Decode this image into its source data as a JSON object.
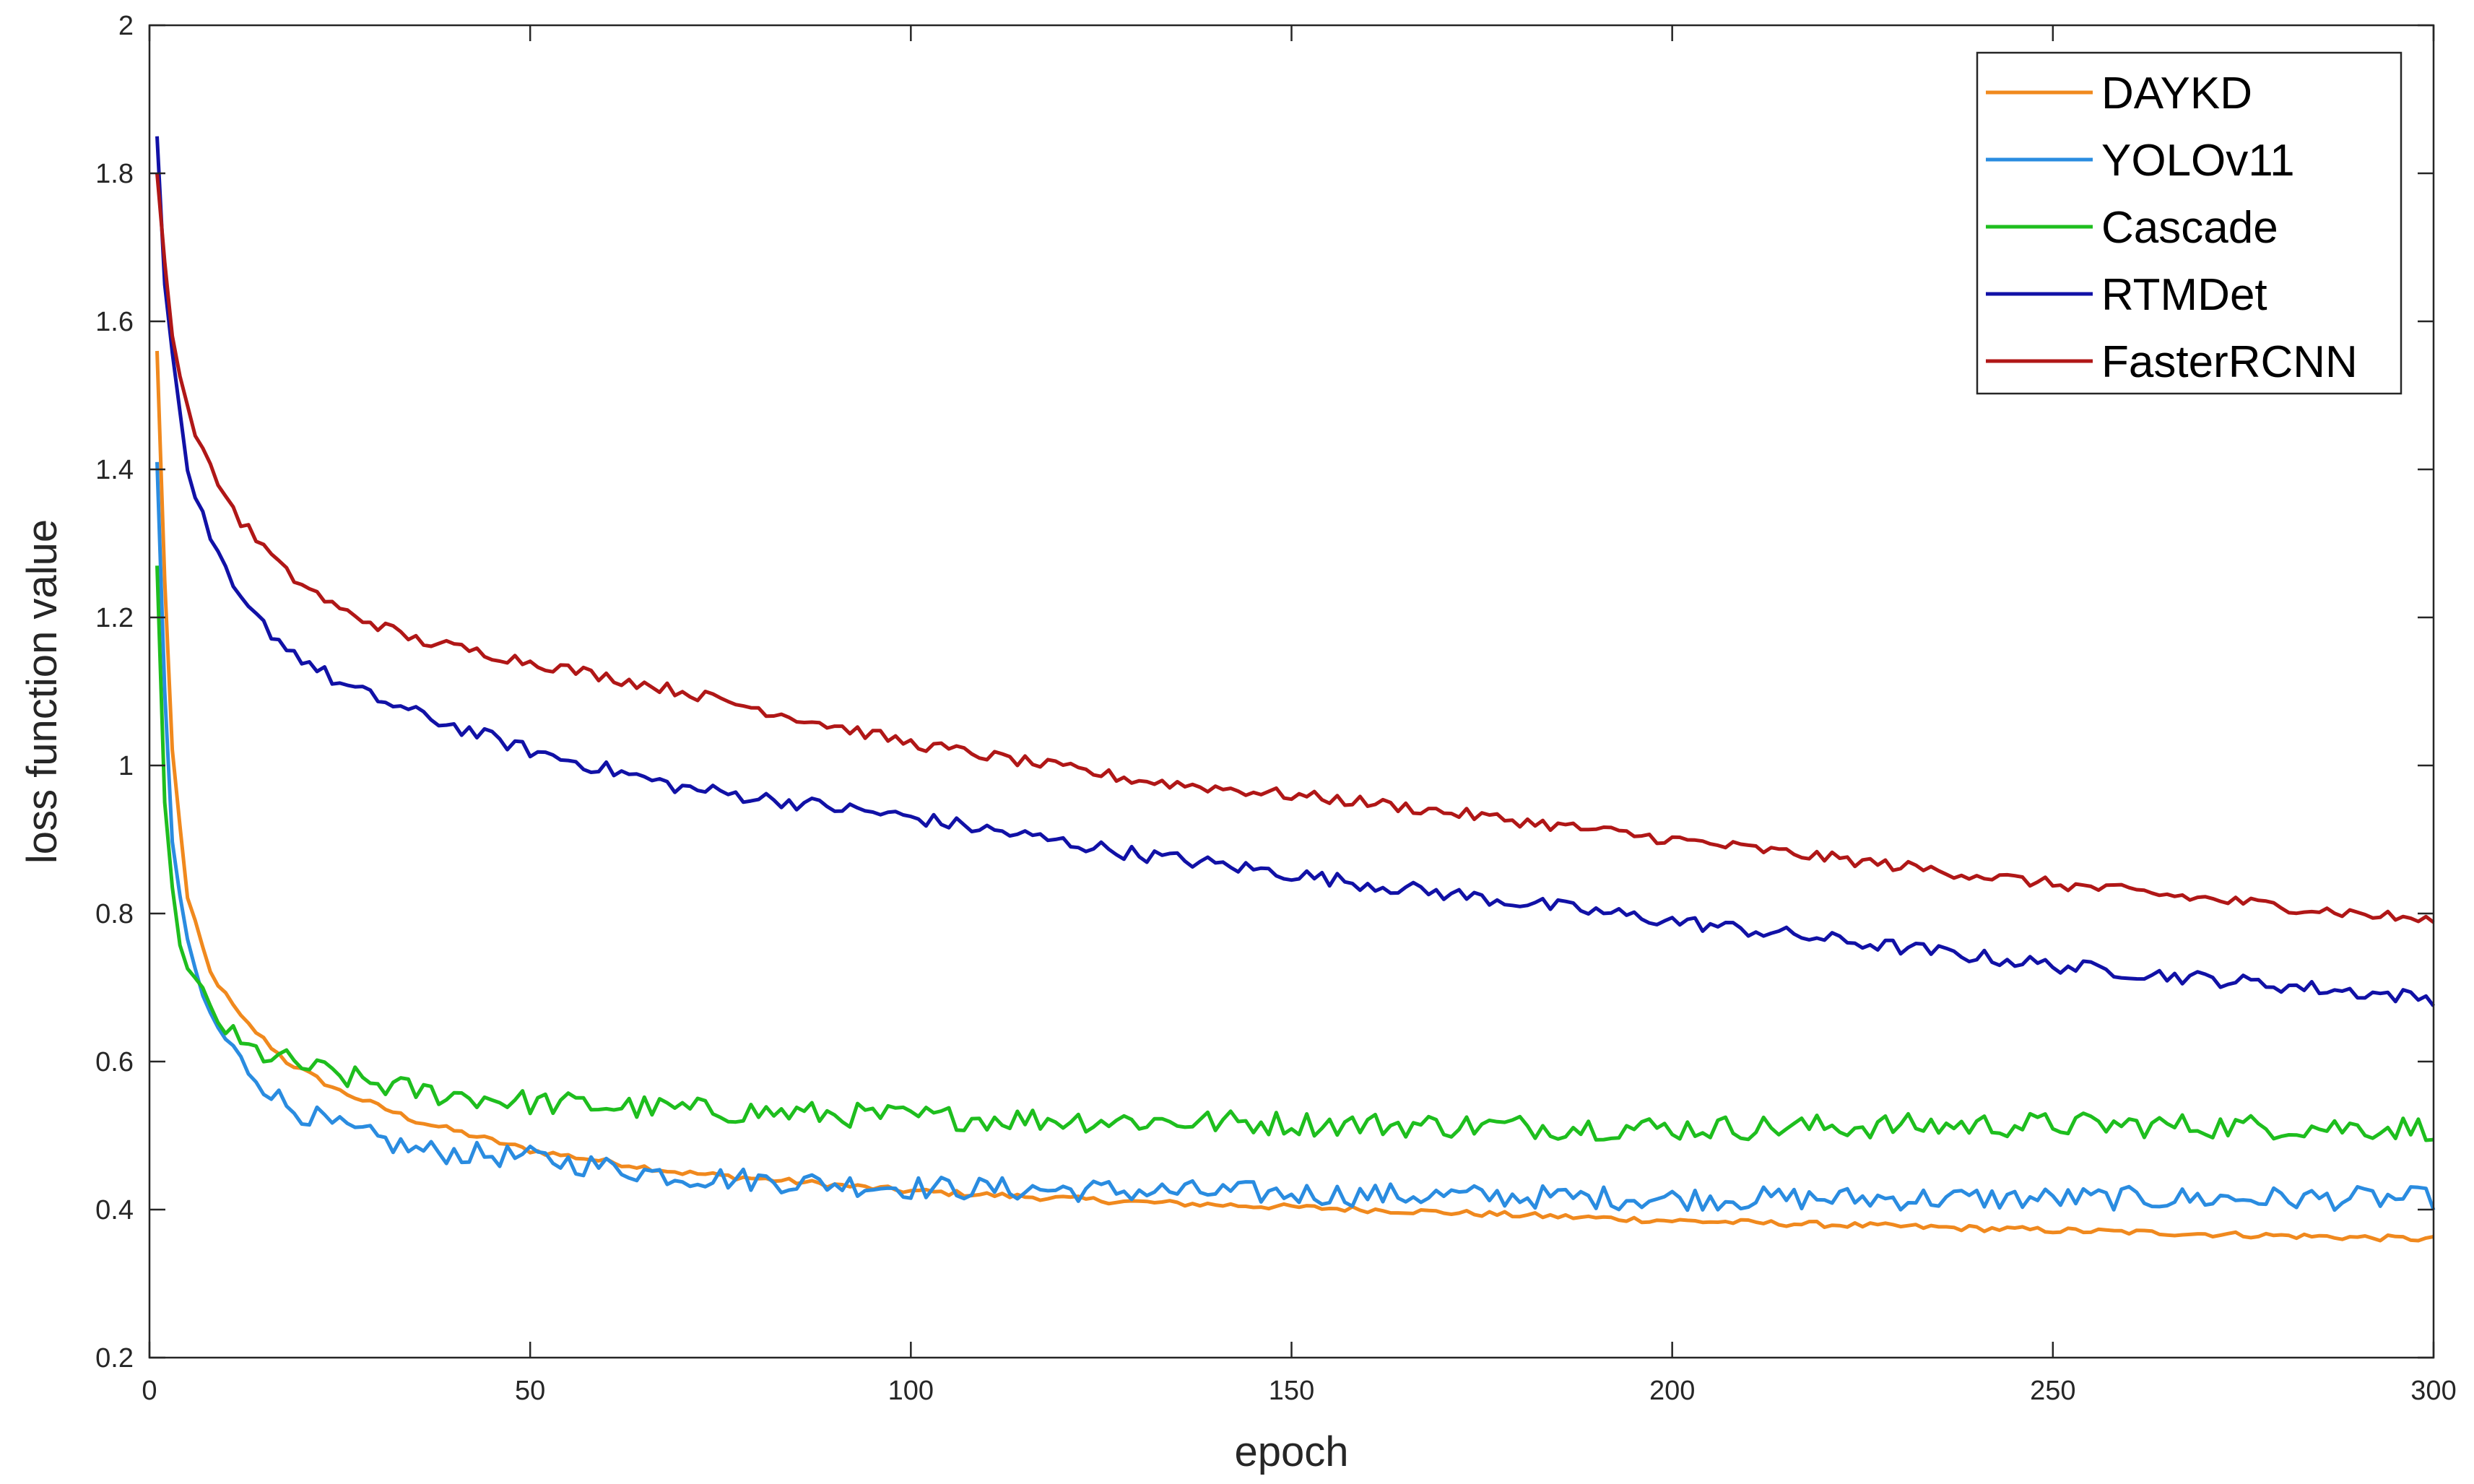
{
  "chart_data": {
    "type": "line",
    "title": "",
    "xlabel": "epoch",
    "ylabel": "loss function value",
    "xlim": [
      0,
      300
    ],
    "ylim": [
      0.2,
      2
    ],
    "xticks": [
      0,
      50,
      100,
      150,
      200,
      250,
      300
    ],
    "yticks": [
      0.2,
      0.4,
      0.6,
      0.8,
      1,
      1.2,
      1.4,
      1.6,
      1.8,
      2
    ],
    "x_tick_labels": [
      "0",
      "50",
      "100",
      "150",
      "200",
      "250",
      "300"
    ],
    "y_tick_labels": [
      "0.2",
      "0.4",
      "0.6",
      "0.8",
      "1",
      "1.2",
      "1.4",
      "1.6",
      "1.8",
      "2"
    ],
    "grid": false,
    "legend_position": "top-right",
    "x": [
      1,
      2,
      3,
      5,
      8,
      12,
      18,
      25,
      35,
      50,
      70,
      100,
      130,
      160,
      200,
      250,
      300
    ],
    "series": [
      {
        "name": "DAYKD",
        "color": "#F0891E",
        "noise": 0.004,
        "values": [
          1.56,
          1.25,
          1.02,
          0.82,
          0.72,
          0.66,
          0.6,
          0.56,
          0.52,
          0.48,
          0.45,
          0.425,
          0.41,
          0.4,
          0.385,
          0.372,
          0.36
        ]
      },
      {
        "name": "YOLOv11",
        "color": "#2A8CE0",
        "noise": 0.016,
        "values": [
          1.41,
          1.1,
          0.9,
          0.75,
          0.66,
          0.6,
          0.54,
          0.51,
          0.48,
          0.47,
          0.445,
          0.43,
          0.425,
          0.42,
          0.415,
          0.415,
          0.415
        ]
      },
      {
        "name": "Cascade",
        "color": "#1EBE1E",
        "noise": 0.017,
        "values": [
          1.27,
          0.95,
          0.82,
          0.72,
          0.67,
          0.62,
          0.6,
          0.58,
          0.56,
          0.545,
          0.535,
          0.525,
          0.52,
          0.515,
          0.51,
          0.515,
          0.51
        ]
      },
      {
        "name": "RTMDet",
        "color": "#1111A6",
        "noise": 0.01,
        "values": [
          1.85,
          1.65,
          1.55,
          1.4,
          1.3,
          1.22,
          1.16,
          1.11,
          1.07,
          1.02,
          0.97,
          0.93,
          0.88,
          0.84,
          0.79,
          0.73,
          0.685
        ]
      },
      {
        "name": "FasterRCNN",
        "color": "#B01717",
        "noise": 0.008,
        "values": [
          1.8,
          1.68,
          1.58,
          1.48,
          1.4,
          1.33,
          1.26,
          1.21,
          1.17,
          1.14,
          1.1,
          1.03,
          0.98,
          0.95,
          0.9,
          0.84,
          0.79
        ]
      }
    ]
  }
}
